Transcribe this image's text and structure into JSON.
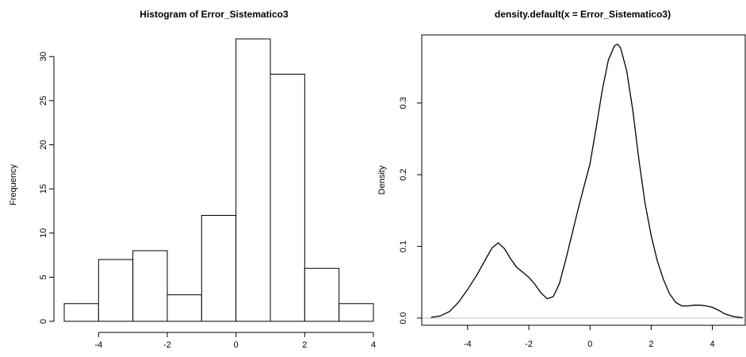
{
  "chart_data": [
    {
      "type": "bar",
      "title": "Histogram of Error_Sistematico3",
      "xlabel": "",
      "ylabel": "Frequency",
      "bins": [
        {
          "x0": -5,
          "x1": -4,
          "count": 2
        },
        {
          "x0": -4,
          "x1": -3,
          "count": 7
        },
        {
          "x0": -3,
          "x1": -2,
          "count": 8
        },
        {
          "x0": -2,
          "x1": -1,
          "count": 3
        },
        {
          "x0": -1,
          "x1": 0,
          "count": 12
        },
        {
          "x0": 0,
          "x1": 1,
          "count": 32
        },
        {
          "x0": 1,
          "x1": 2,
          "count": 28
        },
        {
          "x0": 2,
          "x1": 3,
          "count": 6
        },
        {
          "x0": 3,
          "x1": 4,
          "count": 2
        }
      ],
      "xlim": [
        -5,
        4
      ],
      "ylim": [
        0,
        32
      ],
      "x_ticks": [
        "-4",
        "-2",
        "0",
        "2",
        "4"
      ],
      "y_ticks": [
        "0",
        "5",
        "10",
        "15",
        "20",
        "25",
        "30"
      ],
      "bar_fill": "#ffffff",
      "bar_stroke": "#000000",
      "grid": false
    },
    {
      "type": "line",
      "title": "density.default(x = Error_Sistematico3)",
      "xlabel": "",
      "ylabel": "Density",
      "x": [
        -5.2,
        -4.9,
        -4.6,
        -4.3,
        -4.0,
        -3.7,
        -3.4,
        -3.2,
        -3.0,
        -2.8,
        -2.6,
        -2.4,
        -2.2,
        -2.0,
        -1.8,
        -1.6,
        -1.4,
        -1.2,
        -1.0,
        -0.8,
        -0.6,
        -0.4,
        -0.2,
        0.0,
        0.2,
        0.4,
        0.6,
        0.8,
        0.9,
        1.0,
        1.2,
        1.4,
        1.6,
        1.8,
        2.0,
        2.2,
        2.4,
        2.6,
        2.8,
        3.0,
        3.2,
        3.4,
        3.6,
        3.8,
        4.0,
        4.2,
        4.4,
        4.7,
        5.0
      ],
      "y": [
        0.001,
        0.003,
        0.009,
        0.022,
        0.04,
        0.06,
        0.083,
        0.098,
        0.105,
        0.097,
        0.083,
        0.071,
        0.064,
        0.057,
        0.047,
        0.035,
        0.027,
        0.03,
        0.048,
        0.08,
        0.115,
        0.15,
        0.183,
        0.215,
        0.265,
        0.318,
        0.36,
        0.38,
        0.382,
        0.377,
        0.345,
        0.29,
        0.22,
        0.16,
        0.115,
        0.08,
        0.054,
        0.034,
        0.022,
        0.017,
        0.017,
        0.018,
        0.018,
        0.017,
        0.015,
        0.011,
        0.006,
        0.002,
        0.0005
      ],
      "xlim": [
        -5.5,
        5.1
      ],
      "ylim": [
        -0.01,
        0.395
      ],
      "x_ticks": [
        "-4",
        "-2",
        "0",
        "2",
        "4"
      ],
      "y_ticks": [
        "0.0",
        "0.1",
        "0.2",
        "0.3"
      ],
      "baseline_color": "#bebebe",
      "line_color": "#000000",
      "box": true,
      "grid": false
    }
  ]
}
